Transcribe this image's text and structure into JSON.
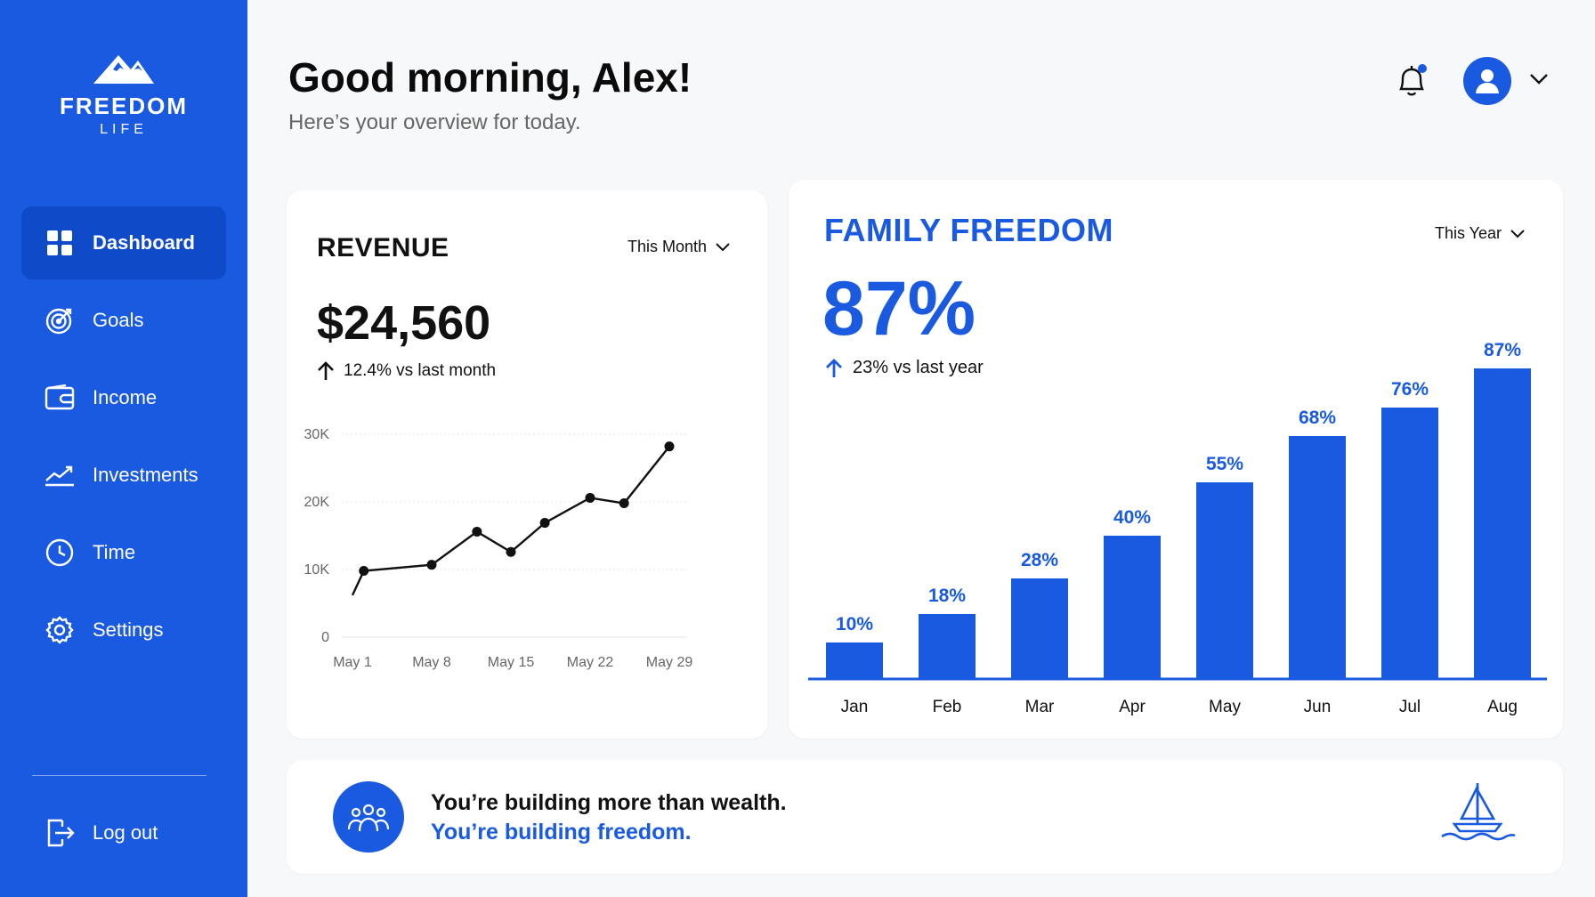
{
  "brand": {
    "name": "FREEDOM",
    "sub": "LIFE"
  },
  "sidebar": {
    "items": [
      {
        "label": "Dashboard",
        "icon": "dashboard-icon",
        "active": true
      },
      {
        "label": "Goals",
        "icon": "target-icon",
        "active": false
      },
      {
        "label": "Income",
        "icon": "wallet-icon",
        "active": false
      },
      {
        "label": "Investments",
        "icon": "trend-icon",
        "active": false
      },
      {
        "label": "Time",
        "icon": "clock-icon",
        "active": false
      },
      {
        "label": "Settings",
        "icon": "gear-icon",
        "active": false
      }
    ],
    "logout_label": "Log out"
  },
  "header": {
    "greeting": "Good morning, Alex!",
    "subtitle": "Here’s your overview for today."
  },
  "revenue": {
    "title": "REVENUE",
    "period": "This Month",
    "value": "$24,560",
    "change": "12.4% vs last month"
  },
  "freedom": {
    "title": "FAMILY FREEDOM",
    "period": "This Year",
    "value": "87%",
    "change": "23% vs last year"
  },
  "banner": {
    "line1": "You’re building more than wealth.",
    "line2": "You’re building freedom."
  },
  "colors": {
    "accent": "#1a5ae0",
    "sidebar": "#1a5ae0"
  },
  "chart_data": [
    {
      "type": "line",
      "title": "REVENUE",
      "x_ticks": [
        "May 1",
        "May 8",
        "May 15",
        "May 22",
        "May 29"
      ],
      "y_ticks": [
        "0",
        "10K",
        "20K",
        "30K"
      ],
      "ylim": [
        0,
        30000
      ],
      "grid": true,
      "points": [
        {
          "day": 1,
          "value": 6200
        },
        {
          "day": 2,
          "value": 9800
        },
        {
          "day": 8,
          "value": 10700
        },
        {
          "day": 12,
          "value": 15600
        },
        {
          "day": 15,
          "value": 12600
        },
        {
          "day": 18,
          "value": 16900
        },
        {
          "day": 22,
          "value": 20600
        },
        {
          "day": 25,
          "value": 19800
        },
        {
          "day": 29,
          "value": 28200
        }
      ]
    },
    {
      "type": "bar",
      "title": "FAMILY FREEDOM",
      "categories": [
        "Jan",
        "Feb",
        "Mar",
        "Apr",
        "May",
        "Jun",
        "Jul",
        "Aug"
      ],
      "values": [
        10,
        18,
        28,
        40,
        55,
        68,
        76,
        87
      ],
      "labels": [
        "10%",
        "18%",
        "28%",
        "40%",
        "55%",
        "68%",
        "76%",
        "87%"
      ],
      "ylim": [
        0,
        100
      ]
    }
  ]
}
